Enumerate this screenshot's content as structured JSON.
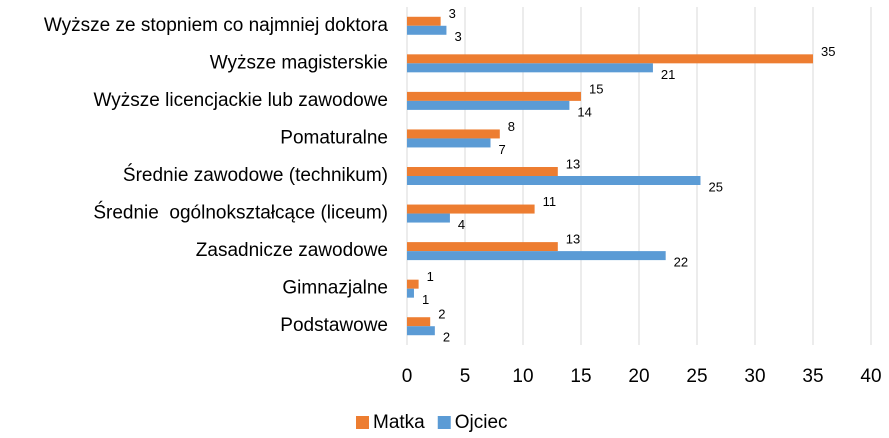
{
  "chart_data": {
    "type": "bar",
    "orientation": "horizontal",
    "categories": [
      "Wyższe ze stopniem co najmniej doktora",
      "Wyższe magisterskie",
      "Wyższe licencjackie lub zawodowe",
      "Pomaturalne",
      "Średnie zawodowe (technikum)",
      "Średnie  ogólnokształcące (liceum)",
      "Zasadnicze zawodowe",
      "Gimnazjalne",
      "Podstawowe"
    ],
    "series": [
      {
        "name": "Matka",
        "color": "#ED7D31",
        "values": [
          2.9,
          35,
          15,
          8,
          13,
          11,
          13,
          1,
          2
        ],
        "value_labels": [
          "3",
          "35",
          "15",
          "8",
          "13",
          "11",
          "13",
          "1",
          "2"
        ]
      },
      {
        "name": "Ojciec",
        "color": "#5B9BD5",
        "values": [
          3.4,
          21.2,
          14,
          7.2,
          25.3,
          3.7,
          22.3,
          0.6,
          2.4
        ],
        "value_labels": [
          "3",
          "21",
          "14",
          "7",
          "25",
          "4",
          "22",
          "1",
          "2"
        ]
      }
    ],
    "xlim": [
      0,
      40
    ],
    "xticks": [
      0,
      5,
      10,
      15,
      20,
      25,
      30,
      35,
      40
    ],
    "grid": true,
    "legend": "bottom"
  }
}
